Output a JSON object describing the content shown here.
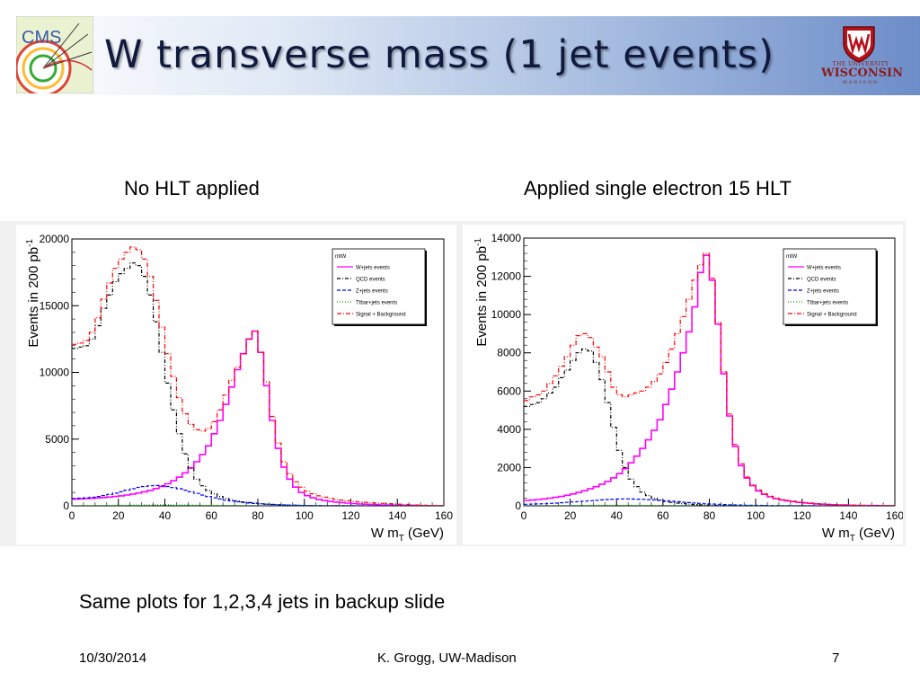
{
  "slide": {
    "title": "W transverse mass (1 jet events)",
    "logo_left_text": "CMS",
    "uw_the": "THE UNIVERSITY",
    "uw_of": "OF",
    "uw_wisconsin": "WISCONSIN",
    "uw_madison": "MADISON",
    "caption_left": "No HLT applied",
    "caption_right": "Applied single electron 15 HLT",
    "note": "Same plots for 1,2,3,4 jets in backup slide",
    "footer_date": "10/30/2014",
    "footer_author": "K. Grogg, UW-Madison",
    "footer_page": "7"
  },
  "colors": {
    "wjets": "#ff00ff",
    "qcd": "#000000",
    "zjets": "#0000ff",
    "ttbar": "#00aa00",
    "total": "#ff0000"
  },
  "chart_data": [
    {
      "type": "line",
      "title": "mtW",
      "xlabel": "W m_T (GeV)",
      "ylabel": "Events in 200 pb^-1",
      "xlim": [
        0,
        160
      ],
      "ylim": [
        0,
        20000
      ],
      "xticks": [
        0,
        20,
        40,
        60,
        80,
        100,
        120,
        140,
        160
      ],
      "yticks": [
        0,
        5000,
        10000,
        15000,
        20000
      ],
      "yticklabels": [
        "0",
        "5000",
        "10000",
        "15000",
        "20000"
      ],
      "legend_position": "top-right",
      "bin_width": 2.5,
      "x": [
        1.25,
        3.75,
        6.25,
        8.75,
        11.25,
        13.75,
        16.25,
        18.75,
        21.25,
        23.75,
        26.25,
        28.75,
        31.25,
        33.75,
        36.25,
        38.75,
        41.25,
        43.75,
        46.25,
        48.75,
        51.25,
        53.75,
        56.25,
        58.75,
        61.25,
        63.75,
        66.25,
        68.75,
        71.25,
        73.75,
        76.25,
        78.75,
        81.25,
        83.75,
        86.25,
        88.75,
        91.25,
        93.75,
        96.25,
        98.75,
        101.25,
        103.75,
        106.25,
        108.75,
        111.25,
        113.75,
        116.25,
        118.75,
        121.25,
        123.75,
        126.25,
        128.75,
        131.25,
        133.75,
        136.25,
        138.75,
        141.25,
        143.75,
        146.25,
        148.75,
        151.25,
        153.75,
        156.25,
        158.75
      ],
      "series": [
        {
          "name": "W+jets events",
          "line": "solid",
          "values": [
            500,
            520,
            540,
            560,
            590,
            620,
            660,
            700,
            750,
            810,
            880,
            960,
            1050,
            1160,
            1290,
            1450,
            1650,
            1880,
            2150,
            2470,
            2850,
            3300,
            3850,
            4500,
            5400,
            6400,
            7600,
            8900,
            10200,
            11400,
            12500,
            13100,
            11500,
            9000,
            6400,
            4300,
            2900,
            2000,
            1400,
            1000,
            760,
            600,
            480,
            400,
            330,
            280,
            240,
            200,
            170,
            140,
            120,
            100,
            85,
            70,
            60,
            50,
            40,
            30,
            25,
            20,
            15,
            12,
            10,
            8
          ]
        },
        {
          "name": "QCD events",
          "line": "dashdot",
          "values": [
            11800,
            11900,
            12000,
            12500,
            13500,
            14800,
            15800,
            16800,
            17400,
            17800,
            18200,
            18000,
            17200,
            15800,
            13800,
            11500,
            9200,
            7200,
            5400,
            3900,
            2800,
            2000,
            1500,
            1150,
            900,
            700,
            560,
            450,
            360,
            290,
            240,
            200,
            160,
            130,
            100,
            80,
            60,
            48,
            38,
            30,
            24,
            18,
            14,
            10,
            8,
            6,
            5,
            4,
            3,
            2,
            2,
            1,
            1,
            1,
            0,
            0,
            0,
            0,
            0,
            0,
            0,
            0,
            0,
            0
          ]
        },
        {
          "name": "Z+jets events",
          "line": "dashed",
          "values": [
            550,
            570,
            600,
            640,
            700,
            770,
            850,
            950,
            1050,
            1170,
            1280,
            1380,
            1450,
            1500,
            1520,
            1500,
            1450,
            1370,
            1280,
            1170,
            1050,
            930,
            810,
            700,
            600,
            510,
            430,
            360,
            300,
            250,
            210,
            175,
            145,
            120,
            98,
            80,
            65,
            52,
            42,
            34,
            27,
            22,
            18,
            14,
            11,
            9,
            7,
            5,
            4,
            3,
            2,
            2,
            1,
            1,
            1,
            0,
            0,
            0,
            0,
            0,
            0,
            0,
            0,
            0
          ]
        },
        {
          "name": "Ttbar+jets events",
          "line": "dotted",
          "values": [
            10,
            12,
            15,
            18,
            22,
            27,
            32,
            38,
            44,
            50,
            56,
            62,
            66,
            70,
            72,
            73,
            72,
            70,
            67,
            63,
            59,
            54,
            49,
            44,
            40,
            36,
            32,
            28,
            25,
            22,
            19,
            16,
            14,
            12,
            10,
            9,
            8,
            7,
            6,
            5,
            4,
            4,
            3,
            3,
            2,
            2,
            2,
            1,
            1,
            1,
            1,
            1,
            0,
            0,
            0,
            0,
            0,
            0,
            0,
            0,
            0,
            0,
            0,
            0
          ]
        },
        {
          "name": "Signal + Background",
          "line": "dashdotred",
          "values": [
            12100,
            12200,
            12400,
            13000,
            14100,
            15500,
            16700,
            17800,
            18500,
            19000,
            19400,
            19200,
            18500,
            17200,
            15400,
            13400,
            11400,
            9700,
            8100,
            6900,
            6100,
            5700,
            5600,
            5800,
            6300,
            7200,
            8300,
            9400,
            10400,
            11400,
            12500,
            13100,
            11500,
            9300,
            6700,
            4700,
            3300,
            2400,
            1800,
            1400,
            1100,
            900,
            750,
            650,
            560,
            490,
            430,
            380,
            330,
            290,
            260,
            230,
            200,
            180,
            160,
            140,
            120,
            100,
            80,
            60,
            40,
            25,
            15,
            10
          ]
        }
      ]
    },
    {
      "type": "line",
      "title": "mtW",
      "xlabel": "W m_T (GeV)",
      "ylabel": "Events in 200 pb^-1",
      "xlim": [
        0,
        160
      ],
      "ylim": [
        0,
        14000
      ],
      "xticks": [
        0,
        20,
        40,
        60,
        80,
        100,
        120,
        140,
        160
      ],
      "yticks": [
        0,
        2000,
        4000,
        6000,
        8000,
        10000,
        12000,
        14000
      ],
      "yticklabels": [
        "0",
        "2000",
        "4000",
        "6000",
        "8000",
        "10000",
        "12000",
        "14000"
      ],
      "legend_position": "top-right",
      "bin_width": 2.5,
      "x": [
        1.25,
        3.75,
        6.25,
        8.75,
        11.25,
        13.75,
        16.25,
        18.75,
        21.25,
        23.75,
        26.25,
        28.75,
        31.25,
        33.75,
        36.25,
        38.75,
        41.25,
        43.75,
        46.25,
        48.75,
        51.25,
        53.75,
        56.25,
        58.75,
        61.25,
        63.75,
        66.25,
        68.75,
        71.25,
        73.75,
        76.25,
        78.75,
        81.25,
        83.75,
        86.25,
        88.75,
        91.25,
        93.75,
        96.25,
        98.75,
        101.25,
        103.75,
        106.25,
        108.75,
        111.25,
        113.75,
        116.25,
        118.75,
        121.25,
        123.75,
        126.25,
        128.75,
        131.25,
        133.75,
        136.25,
        138.75,
        141.25,
        143.75,
        146.25,
        148.75,
        151.25,
        153.75,
        156.25,
        158.75
      ],
      "series": [
        {
          "name": "W+jets events",
          "line": "solid",
          "values": [
            280,
            300,
            330,
            360,
            400,
            440,
            490,
            550,
            620,
            700,
            790,
            890,
            1000,
            1130,
            1280,
            1460,
            1680,
            1940,
            2250,
            2600,
            3000,
            3450,
            3950,
            4500,
            5300,
            6100,
            7000,
            8000,
            9100,
            10400,
            12200,
            13100,
            11800,
            9500,
            6900,
            4700,
            3100,
            2100,
            1450,
            1050,
            780,
            600,
            470,
            380,
            310,
            260,
            220,
            180,
            150,
            125,
            100,
            85,
            70,
            58,
            48,
            40,
            32,
            25,
            20,
            15,
            12,
            10,
            8,
            6
          ]
        },
        {
          "name": "QCD events",
          "line": "dashdot",
          "values": [
            5200,
            5300,
            5400,
            5600,
            5900,
            6200,
            6700,
            7100,
            7600,
            8000,
            8200,
            8100,
            7500,
            6600,
            5400,
            4100,
            2900,
            2000,
            1400,
            1000,
            720,
            530,
            400,
            300,
            230,
            180,
            140,
            110,
            85,
            65,
            50,
            40,
            30,
            24,
            19,
            15,
            12,
            9,
            7,
            5,
            4,
            3,
            2,
            2,
            1,
            1,
            1,
            0,
            0,
            0,
            0,
            0,
            0,
            0,
            0,
            0,
            0,
            0,
            0,
            0,
            0,
            0,
            0,
            0
          ]
        },
        {
          "name": "Z+jets events",
          "line": "dashed",
          "values": [
            80,
            90,
            100,
            110,
            125,
            140,
            160,
            180,
            200,
            220,
            245,
            270,
            290,
            310,
            330,
            345,
            355,
            360,
            358,
            350,
            340,
            325,
            305,
            285,
            262,
            240,
            215,
            190,
            168,
            147,
            128,
            110,
            94,
            80,
            68,
            57,
            48,
            40,
            33,
            27,
            22,
            18,
            15,
            12,
            10,
            8,
            6,
            5,
            4,
            3,
            2,
            2,
            1,
            1,
            1,
            0,
            0,
            0,
            0,
            0,
            0,
            0,
            0,
            0
          ]
        },
        {
          "name": "Ttbar+jets events",
          "line": "dotted",
          "values": [
            5,
            6,
            7,
            8,
            10,
            12,
            14,
            16,
            19,
            22,
            25,
            27,
            29,
            31,
            32,
            33,
            33,
            32,
            31,
            29,
            27,
            25,
            23,
            21,
            19,
            17,
            15,
            13,
            11,
            10,
            9,
            8,
            7,
            6,
            5,
            4,
            4,
            3,
            3,
            2,
            2,
            2,
            1,
            1,
            1,
            1,
            1,
            0,
            0,
            0,
            0,
            0,
            0,
            0,
            0,
            0,
            0,
            0,
            0,
            0,
            0,
            0,
            0,
            0
          ]
        },
        {
          "name": "Signal + Background",
          "line": "dashdotred",
          "values": [
            5500,
            5700,
            5800,
            6000,
            6400,
            6800,
            7300,
            7800,
            8400,
            8900,
            9000,
            8800,
            8300,
            7800,
            7000,
            6200,
            5800,
            5700,
            5800,
            5900,
            6000,
            6200,
            6500,
            6900,
            7500,
            8200,
            9000,
            9900,
            10800,
            11800,
            12600,
            13200,
            11900,
            9600,
            7000,
            4800,
            3200,
            2200,
            1500,
            1100,
            820,
            630,
            500,
            400,
            330,
            280,
            240,
            200,
            170,
            140,
            115,
            95,
            78,
            62,
            50,
            42,
            34,
            27,
            21,
            16,
            13,
            10,
            8,
            6
          ]
        }
      ]
    }
  ]
}
